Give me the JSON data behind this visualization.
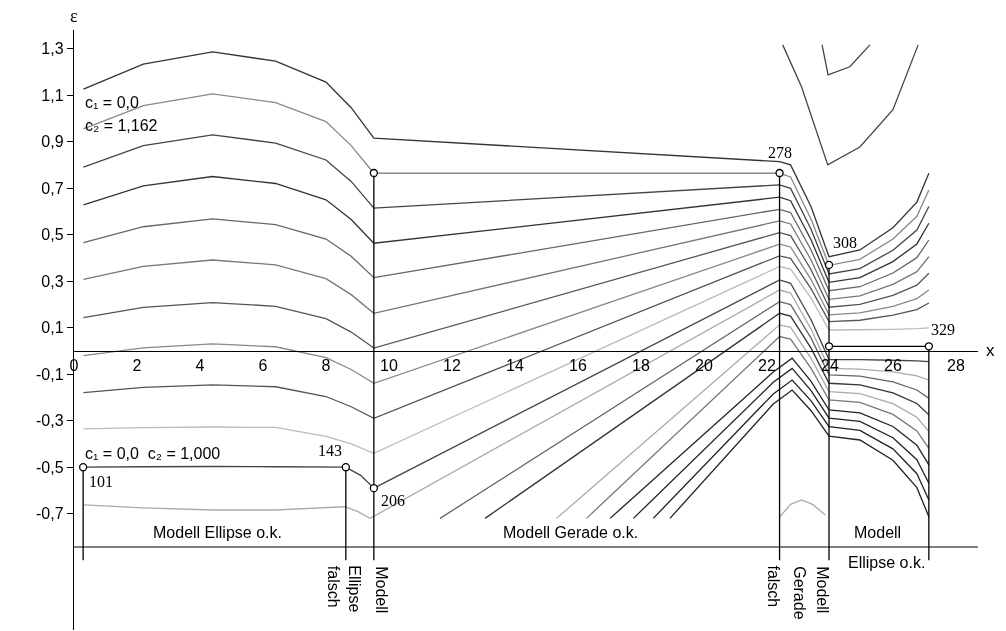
{
  "chart_data": {
    "type": "line",
    "xlabel": "x",
    "ylabel": "ε",
    "xlim": [
      0,
      28.7
    ],
    "ylim": [
      -1.2,
      1.38
    ],
    "xticks": [
      0,
      2,
      4,
      6,
      8,
      10,
      12,
      14,
      16,
      18,
      20,
      22,
      24,
      26,
      28
    ],
    "yticks": [
      {
        "value": 1.3,
        "label": "1,3"
      },
      {
        "value": 1.1,
        "label": "1,1"
      },
      {
        "value": 0.9,
        "label": "0,9"
      },
      {
        "value": 0.7,
        "label": "0,7"
      },
      {
        "value": 0.5,
        "label": "0,5"
      },
      {
        "value": 0.3,
        "label": "0,3"
      },
      {
        "value": 0.1,
        "label": "0,1"
      },
      {
        "value": -0.1,
        "label": "-0,1"
      },
      {
        "value": -0.3,
        "label": "-0,3"
      },
      {
        "value": -0.5,
        "label": "-0,5"
      },
      {
        "value": -0.7,
        "label": "-0,7"
      }
    ],
    "grid": false,
    "ref_lines": [
      {
        "axis": "y",
        "value": -0.843,
        "color": "#000000"
      }
    ],
    "series": [
      {
        "color": "#333333",
        "x": [
          0.3,
          2.2,
          4.4,
          6.4,
          8.0,
          8.8,
          9.52,
          22.4,
          22.75,
          23.4,
          23.97,
          24.95,
          26,
          26.76,
          27.14
        ],
        "values": [
          1.126,
          1.233,
          1.286,
          1.246,
          1.156,
          1.046,
          0.915,
          0.814,
          0.8,
          0.62,
          0.405,
          0.434,
          0.53,
          0.64,
          0.764
        ]
      },
      {
        "color": "#888888",
        "x": [
          0.3,
          2.2,
          4.4,
          6.4,
          8.0,
          8.8,
          9.52,
          22.4,
          22.75,
          23.4,
          23.97,
          24.95,
          26,
          26.76,
          27.14
        ],
        "values": [
          0.955,
          1.055,
          1.105,
          1.068,
          0.986,
          0.883,
          0.764,
          0.764,
          0.748,
          0.566,
          0.368,
          0.394,
          0.481,
          0.579,
          0.692
        ]
      },
      {
        "color": "#444444",
        "x": [
          0.3,
          2.2,
          4.4,
          6.4,
          8.0,
          8.8,
          9.52,
          22.4,
          22.75,
          23.4,
          23.97,
          24.95,
          26,
          26.76,
          27.14
        ],
        "values": [
          0.79,
          0.883,
          0.929,
          0.894,
          0.821,
          0.729,
          0.614,
          0.714,
          0.699,
          0.523,
          0.331,
          0.354,
          0.433,
          0.52,
          0.621
        ]
      },
      {
        "color": "#333333",
        "x": [
          0.3,
          2.2,
          4.4,
          6.4,
          8.0,
          8.8,
          9.52,
          22.4,
          22.75,
          23.4,
          23.97,
          24.95,
          26,
          26.76,
          27.14
        ],
        "values": [
          0.628,
          0.71,
          0.75,
          0.72,
          0.65,
          0.565,
          0.463,
          0.661,
          0.646,
          0.478,
          0.295,
          0.315,
          0.384,
          0.46,
          0.549
        ]
      },
      {
        "color": "#666666",
        "x": [
          0.3,
          2.2,
          4.4,
          6.4,
          8.0,
          8.8,
          9.52,
          22.4,
          22.75,
          23.4,
          23.97,
          24.95,
          26,
          26.76,
          27.14
        ],
        "values": [
          0.466,
          0.534,
          0.568,
          0.543,
          0.481,
          0.407,
          0.315,
          0.609,
          0.595,
          0.434,
          0.259,
          0.276,
          0.335,
          0.401,
          0.477
        ]
      },
      {
        "color": "#777777",
        "x": [
          0.3,
          2.2,
          4.4,
          6.4,
          8.0,
          8.8,
          9.52,
          22.4,
          22.75,
          23.4,
          23.97,
          24.95,
          26,
          26.76,
          27.14
        ],
        "values": [
          0.308,
          0.364,
          0.391,
          0.37,
          0.311,
          0.242,
          0.162,
          0.559,
          0.546,
          0.391,
          0.222,
          0.237,
          0.286,
          0.341,
          0.405
        ]
      },
      {
        "color": "#555555",
        "x": [
          0.3,
          2.2,
          4.4,
          6.4,
          8.0,
          8.8,
          9.52,
          22.4,
          22.75,
          23.4,
          23.97,
          24.95,
          26,
          26.76,
          27.14
        ],
        "values": [
          0.143,
          0.187,
          0.208,
          0.192,
          0.139,
          0.081,
          0.012,
          0.509,
          0.496,
          0.349,
          0.188,
          0.2,
          0.239,
          0.283,
          0.334
        ]
      },
      {
        "color": "#888888",
        "x": [
          0.3,
          2.2,
          4.4,
          6.4,
          8.0,
          8.8,
          9.52,
          22.4,
          22.75,
          23.4,
          23.97,
          24.95,
          26,
          26.76,
          27.14
        ],
        "values": [
          -0.02,
          0.013,
          0.03,
          0.018,
          -0.029,
          -0.08,
          -0.139,
          0.459,
          0.447,
          0.307,
          0.155,
          0.164,
          0.192,
          0.225,
          0.262
        ]
      },
      {
        "color": "#555555",
        "x": [
          0.3,
          2.2,
          4.4,
          6.4,
          8.0,
          8.8,
          9.52,
          22.4,
          22.75,
          23.4,
          23.97,
          24.95,
          26,
          26.76,
          27.14
        ],
        "values": [
          -0.179,
          -0.157,
          -0.146,
          -0.154,
          -0.196,
          -0.24,
          -0.29,
          0.409,
          0.398,
          0.268,
          0.126,
          0.132,
          0.154,
          0.178,
          0.206
        ]
      },
      {
        "color": "#bbbbbb",
        "x": [
          0.3,
          2.2,
          4.4,
          6.4,
          8.0,
          8.8,
          9.52,
          22.4,
          22.75,
          23.4,
          23.97,
          24.95,
          26,
          26.76,
          27.14
        ],
        "values": [
          -0.335,
          -0.33,
          -0.327,
          -0.329,
          -0.367,
          -0.4,
          -0.44,
          0.363,
          0.352,
          0.227,
          0.09,
          0.091,
          0.093,
          0.096,
          0.099
        ]
      },
      {
        "color": "#444444",
        "x": [
          0.29,
          2.2,
          4.4,
          6.4,
          8.63,
          9.1,
          9.52,
          22.4,
          22.75,
          23.4,
          23.97,
          24.95,
          26,
          26.76,
          27.14
        ],
        "values": [
          -0.5,
          -0.498,
          -0.497,
          -0.498,
          -0.5,
          -0.535,
          -0.59,
          0.305,
          0.291,
          0.134,
          -0.037,
          -0.037,
          -0.04,
          -0.043,
          -0.046
        ]
      },
      {
        "color": "#aaaaaa",
        "x": [
          0.3,
          2.2,
          4.4,
          6.4,
          8.6,
          9.0,
          9.4,
          22.4,
          22.75,
          23.4,
          23.97,
          24.95,
          26,
          26.76,
          27.14
        ],
        "values": [
          -0.662,
          -0.675,
          -0.684,
          -0.684,
          -0.67,
          -0.69,
          -0.72,
          0.262,
          0.249,
          0.094,
          -0.075,
          -0.078,
          -0.09,
          -0.107,
          -0.125
        ]
      },
      {
        "color": "#666666",
        "x": [
          11.62,
          22.4,
          22.75,
          23.4,
          23.97,
          24.95,
          26,
          26.76,
          27.14
        ],
        "values": [
          -0.72,
          0.212,
          0.199,
          0.055,
          -0.103,
          -0.108,
          -0.133,
          -0.168,
          -0.204
        ]
      },
      {
        "color": "#333333",
        "x": [
          13.05,
          22.4,
          22.75,
          23.4,
          23.97,
          24.95,
          26,
          26.76,
          27.14
        ],
        "values": [
          -0.72,
          0.162,
          0.15,
          0.012,
          -0.139,
          -0.146,
          -0.18,
          -0.226,
          -0.275
        ]
      },
      {
        "color": "#aaaaaa",
        "x": [
          15.32,
          22.4,
          22.75,
          23.4,
          23.97,
          24.95,
          26,
          26.76,
          27.14
        ],
        "values": [
          -0.72,
          0.112,
          0.101,
          -0.032,
          -0.175,
          -0.184,
          -0.227,
          -0.285,
          -0.347
        ]
      },
      {
        "color": "#777777",
        "x": [
          16.27,
          22.4,
          22.75,
          23.4,
          23.97,
          24.95,
          26,
          26.76,
          27.14
        ],
        "values": [
          -0.72,
          0.062,
          0.051,
          -0.075,
          -0.211,
          -0.221,
          -0.273,
          -0.344,
          -0.419
        ]
      },
      {
        "color": "#222222",
        "x": [
          17.02,
          22.2,
          22.8,
          23.4,
          23.97,
          24.95,
          26,
          26.76,
          27.14
        ],
        "values": [
          -0.72,
          -0.091,
          -0.031,
          -0.131,
          -0.254,
          -0.266,
          -0.325,
          -0.405,
          -0.49
        ]
      },
      {
        "color": "#222222",
        "x": [
          17.76,
          22.2,
          22.8,
          23.4,
          23.97,
          24.95,
          26,
          26.76,
          27.14
        ],
        "values": [
          -0.72,
          -0.135,
          -0.075,
          -0.171,
          -0.289,
          -0.303,
          -0.373,
          -0.468,
          -0.569
        ]
      },
      {
        "color": "#222222",
        "x": [
          18.39,
          22.2,
          22.8,
          23.4,
          23.97,
          24.95,
          26,
          26.76,
          27.14
        ],
        "values": [
          -0.72,
          -0.185,
          -0.125,
          -0.215,
          -0.326,
          -0.342,
          -0.421,
          -0.528,
          -0.641
        ]
      },
      {
        "color": "#222222",
        "x": [
          18.92,
          22.2,
          22.8,
          23.4,
          23.97,
          24.95,
          26,
          26.76,
          27.14
        ],
        "values": [
          -0.72,
          -0.228,
          -0.168,
          -0.257,
          -0.366,
          -0.383,
          -0.47,
          -0.588,
          -0.713
        ]
      },
      {
        "color": "#444444",
        "x": [
          22.5,
          23.1,
          23.93,
          24.95,
          26.0,
          26.8
        ],
        "values": [
          1.316,
          1.135,
          0.8,
          0.877,
          1.037,
          1.316
        ]
      },
      {
        "color": "#444444",
        "x": [
          23.75,
          23.94,
          24.63,
          25.27
        ],
        "values": [
          1.316,
          1.187,
          1.222,
          1.316
        ]
      },
      {
        "color": "#aaaaaa",
        "x": [
          22.4,
          22.75,
          23.1,
          23.45,
          23.85
        ],
        "values": [
          -0.714,
          -0.66,
          -0.641,
          -0.66,
          -0.705
        ]
      },
      {
        "color": "#000000",
        "x": [
          0.29,
          0.29
        ],
        "values": [
          -0.5,
          -0.9
        ]
      },
      {
        "color": "#000000",
        "x": [
          8.63,
          8.63
        ],
        "values": [
          -0.5,
          -0.9
        ]
      },
      {
        "color": "#000000",
        "x": [
          9.52,
          9.52
        ],
        "values": [
          0.765,
          -0.9
        ]
      },
      {
        "color": "#000000",
        "x": [
          22.4,
          22.4
        ],
        "values": [
          0.765,
          -0.9
        ]
      },
      {
        "color": "#000000",
        "x": [
          23.97,
          23.97
        ],
        "values": [
          0.37,
          -0.9
        ]
      },
      {
        "color": "#000000",
        "x": [
          27.14,
          27.14
        ],
        "values": [
          0.02,
          -0.9
        ]
      },
      {
        "color": "#000000",
        "x": [
          23.97,
          27.14
        ],
        "values": [
          0.02,
          0.02
        ]
      },
      {
        "type": "scatter",
        "marker": "circle",
        "color": "#000000",
        "x": [
          0.29,
          8.63,
          9.52,
          9.52,
          22.4,
          23.97,
          23.97,
          27.14
        ],
        "values": [
          -0.5,
          -0.5,
          -0.59,
          0.765,
          0.765,
          0.37,
          0.02,
          0.02
        ]
      }
    ],
    "annotations": [
      {
        "text": "101",
        "x": 0.29,
        "y": -0.5
      },
      {
        "text": "143",
        "x": 8.63,
        "y": -0.5
      },
      {
        "text": "206",
        "x": 9.52,
        "y": -0.59
      },
      {
        "text": "278",
        "x": 22.4,
        "y": 0.765
      },
      {
        "text": "308",
        "x": 23.97,
        "y": 0.37
      },
      {
        "text": "329",
        "x": 27.14,
        "y": 0.02
      },
      "c₁ = 0,0",
      "c₂ = 1,162",
      "c₁ = 0,0  c₂ = 1,000",
      "Modell Ellipse o.k.",
      "Modell Gerade o.k.",
      "Modell",
      "Ellipse o.k.",
      "falsch",
      "Ellipse",
      "Modell",
      "falsch",
      "Gerade",
      "Modell"
    ]
  }
}
